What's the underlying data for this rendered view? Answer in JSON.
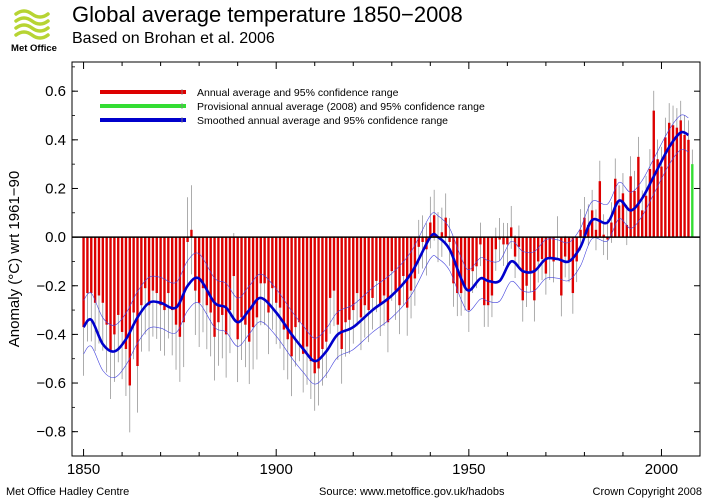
{
  "header": {
    "logo_text": "Met Office",
    "title": "Global average temperature 1850−2008",
    "subtitle": "Based on Brohan et al. 2006"
  },
  "footer": {
    "left": "Met Office Hadley Centre",
    "source": "Source: www.metoffice.gov.uk/hadobs",
    "copyright": "Crown Copyright 2008"
  },
  "colors": {
    "annual": "#dd0000",
    "provisional": "#33dd33",
    "smoothed": "#0000cc",
    "smoothed_band": "#4444dd",
    "error_bar": "#888888",
    "logo": "#b7d433"
  },
  "chart_data": {
    "type": "bar",
    "ylabel": "Anomaly (°C) wrt 1961−90",
    "xlim": [
      1847,
      2010
    ],
    "ylim": [
      -0.9,
      0.72
    ],
    "x_ticks": [
      1850,
      1900,
      1950,
      2000
    ],
    "y_ticks": [
      -0.8,
      -0.6,
      -0.4,
      -0.2,
      0.0,
      0.2,
      0.4,
      0.6
    ],
    "y_tick_labels": [
      "−0.8",
      "−0.6",
      "−0.4",
      "−0.2",
      "0.0",
      "0.2",
      "0.4",
      "0.6"
    ],
    "grid": false,
    "legend": {
      "position": "top-left",
      "entries": [
        {
          "label": "Annual average and 95% confidence range",
          "color": "#dd0000"
        },
        {
          "label": "Provisional annual average (2008) and 95% confidence range",
          "color": "#33dd33"
        },
        {
          "label": "Smoothed annual average and 95% confidence range",
          "color": "#0000cc"
        }
      ]
    },
    "series": [
      {
        "name": "Annual average and 95% confidence range",
        "start_year": 1850,
        "values": [
          -0.37,
          -0.23,
          -0.23,
          -0.27,
          -0.24,
          -0.27,
          -0.36,
          -0.47,
          -0.4,
          -0.32,
          -0.39,
          -0.46,
          -0.61,
          -0.31,
          -0.53,
          -0.28,
          -0.21,
          -0.28,
          -0.22,
          -0.23,
          -0.28,
          -0.3,
          -0.23,
          -0.3,
          -0.36,
          -0.41,
          -0.35,
          -0.02,
          0.03,
          -0.22,
          -0.27,
          -0.21,
          -0.28,
          -0.31,
          -0.41,
          -0.35,
          -0.32,
          -0.4,
          -0.3,
          -0.16,
          -0.42,
          -0.33,
          -0.36,
          -0.43,
          -0.37,
          -0.33,
          -0.19,
          -0.19,
          -0.31,
          -0.21,
          -0.27,
          -0.29,
          -0.38,
          -0.42,
          -0.49,
          -0.37,
          -0.35,
          -0.48,
          -0.45,
          -0.51,
          -0.56,
          -0.54,
          -0.46,
          -0.43,
          -0.25,
          -0.22,
          -0.36,
          -0.46,
          -0.35,
          -0.34,
          -0.3,
          -0.23,
          -0.33,
          -0.28,
          -0.3,
          -0.25,
          -0.18,
          -0.28,
          -0.24,
          -0.35,
          -0.14,
          -0.22,
          -0.28,
          -0.16,
          -0.29,
          -0.22,
          -0.17,
          -0.04,
          -0.02,
          -0.05,
          0.06,
          0.09,
          0.0,
          0.02,
          0.08,
          -0.02,
          -0.19,
          -0.23,
          -0.23,
          -0.21,
          -0.3,
          -0.14,
          -0.12,
          -0.03,
          -0.28,
          -0.28,
          -0.24,
          -0.05,
          -0.01,
          -0.03,
          -0.03,
          0.04,
          -0.08,
          -0.04,
          -0.26,
          -0.2,
          -0.14,
          -0.26,
          -0.1,
          -0.09,
          -0.15,
          -0.09,
          -0.1,
          0.0,
          -0.24,
          -0.08,
          -0.1,
          -0.23,
          -0.1,
          0.03,
          0.08,
          0.05,
          0.11,
          0.03,
          0.23,
          0.01,
          -0.01,
          0.06,
          0.24,
          0.13,
          0.18,
          0.05,
          0.25,
          0.19,
          0.33,
          0.11,
          0.17,
          0.28,
          0.52,
          0.32,
          0.29,
          0.41,
          0.47,
          0.46,
          0.45,
          0.48,
          0.42,
          0.4
        ],
        "error_halfwidths": {
          "1850": 0.2,
          "1900": 0.17,
          "1950": 0.09,
          "2007": 0.08
        }
      },
      {
        "name": "Provisional annual average (2008) and 95% confidence range",
        "x": [
          2008
        ],
        "values": [
          0.3
        ],
        "error_halfwidth": 0.06
      },
      {
        "name": "Smoothed annual average and 95% confidence range",
        "x": [
          1850,
          1852,
          1855,
          1858,
          1861,
          1864,
          1867,
          1870,
          1874,
          1877,
          1880,
          1884,
          1887,
          1890,
          1893,
          1896,
          1900,
          1904,
          1907,
          1910,
          1913,
          1916,
          1920,
          1925,
          1930,
          1935,
          1940,
          1942,
          1945,
          1948,
          1950,
          1953,
          1955,
          1958,
          1961,
          1964,
          1967,
          1970,
          1973,
          1976,
          1979,
          1982,
          1986,
          1989,
          1992,
          1995,
          1998,
          2002,
          2005,
          2007
        ],
        "values": [
          -0.37,
          -0.34,
          -0.44,
          -0.47,
          -0.42,
          -0.33,
          -0.27,
          -0.27,
          -0.29,
          -0.2,
          -0.17,
          -0.27,
          -0.29,
          -0.35,
          -0.3,
          -0.25,
          -0.31,
          -0.4,
          -0.46,
          -0.51,
          -0.47,
          -0.4,
          -0.37,
          -0.3,
          -0.24,
          -0.15,
          0.0,
          0.0,
          -0.05,
          -0.17,
          -0.22,
          -0.17,
          -0.18,
          -0.18,
          -0.1,
          -0.14,
          -0.14,
          -0.09,
          -0.09,
          -0.1,
          -0.04,
          0.07,
          0.06,
          0.15,
          0.11,
          0.16,
          0.25,
          0.37,
          0.43,
          0.42
        ],
        "band_halfwidth_start": 0.11,
        "band_halfwidth_end": 0.07
      }
    ]
  }
}
